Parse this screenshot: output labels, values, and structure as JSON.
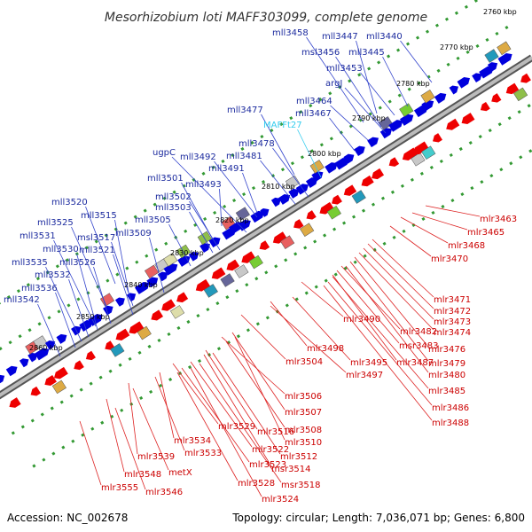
{
  "header": {
    "title": "Mesorhizobium loti MAFF303099, complete genome"
  },
  "footer": {
    "accession": "Accession: NC_002678",
    "summary": "Topology: circular; Length: 7,036,071 bp; Genes: 6,800"
  },
  "colors": {
    "forward_gene": "#0000dd",
    "reverse_gene": "#ee0000",
    "backbone": "#888888",
    "tick_dots": "#339933",
    "top_label": "#1b2a9e",
    "bottom_label": "#cc0000",
    "rna_label": "#33ccee"
  },
  "kbp_markers": [
    {
      "label": "2760 kbp"
    },
    {
      "label": "2770 kbp"
    },
    {
      "label": "2780 kbp"
    },
    {
      "label": "2790 kbp"
    },
    {
      "label": "2800 kbp"
    },
    {
      "label": "2810 kbp"
    },
    {
      "label": "2820 kbp"
    },
    {
      "label": "2830 kbp"
    },
    {
      "label": "2840 kbp"
    },
    {
      "label": "2850 kbp"
    },
    {
      "label": "2860 kbp"
    }
  ],
  "top_labels": [
    {
      "text": "mll3458"
    },
    {
      "text": "mll3447"
    },
    {
      "text": "mll3440"
    },
    {
      "text": "msl3456"
    },
    {
      "text": "mll3445"
    },
    {
      "text": "mll3453"
    },
    {
      "text": "argJ"
    },
    {
      "text": "mll3464"
    },
    {
      "text": "mll3477"
    },
    {
      "text": "mll3467"
    },
    {
      "text": "MAFFt27"
    },
    {
      "text": "mll3478"
    },
    {
      "text": "mll3481"
    },
    {
      "text": "ugpC"
    },
    {
      "text": "mll3492"
    },
    {
      "text": "mll3491"
    },
    {
      "text": "mll3501"
    },
    {
      "text": "mll3493"
    },
    {
      "text": "mll3502"
    },
    {
      "text": "mll3503"
    },
    {
      "text": "mll3520"
    },
    {
      "text": "mll3515"
    },
    {
      "text": "mll3525"
    },
    {
      "text": "mll3505"
    },
    {
      "text": "msl3517"
    },
    {
      "text": "mll3509"
    },
    {
      "text": "mll3531"
    },
    {
      "text": "mll3521"
    },
    {
      "text": "mll3530"
    },
    {
      "text": "mll3535"
    },
    {
      "text": "mll3526"
    },
    {
      "text": "mll3532"
    },
    {
      "text": "mll3536"
    },
    {
      "text": "mll3542"
    }
  ],
  "bottom_labels": [
    {
      "text": "mlr3463"
    },
    {
      "text": "mlr3465"
    },
    {
      "text": "mlr3468"
    },
    {
      "text": "mlr3470"
    },
    {
      "text": "mlr3471"
    },
    {
      "text": "mlr3472"
    },
    {
      "text": "mlr3473"
    },
    {
      "text": "mlr3474"
    },
    {
      "text": "mlr3476"
    },
    {
      "text": "mlr3479"
    },
    {
      "text": "mlr3480"
    },
    {
      "text": "mlr3482"
    },
    {
      "text": "msr3483"
    },
    {
      "text": "mlr3487"
    },
    {
      "text": "mlr3490"
    },
    {
      "text": "mlr3485"
    },
    {
      "text": "mlr3486"
    },
    {
      "text": "mlr3488"
    },
    {
      "text": "mlr3498"
    },
    {
      "text": "mlr3495"
    },
    {
      "text": "mlr3504"
    },
    {
      "text": "mlr3497"
    },
    {
      "text": "mlr3506"
    },
    {
      "text": "mlr3507"
    },
    {
      "text": "mlr3508"
    },
    {
      "text": "mlr3510"
    },
    {
      "text": "mlr3529"
    },
    {
      "text": "mlr3516"
    },
    {
      "text": "mlr3534"
    },
    {
      "text": "mlr3512"
    },
    {
      "text": "mlr3522"
    },
    {
      "text": "mlr3539"
    },
    {
      "text": "mlr3533"
    },
    {
      "text": "mlr3523"
    },
    {
      "text": "msr3514"
    },
    {
      "text": "metX"
    },
    {
      "text": "mlr3548"
    },
    {
      "text": "mlr3528"
    },
    {
      "text": "msr3518"
    },
    {
      "text": "mlr3555"
    },
    {
      "text": "mlr3546"
    },
    {
      "text": "mlr3524"
    }
  ]
}
